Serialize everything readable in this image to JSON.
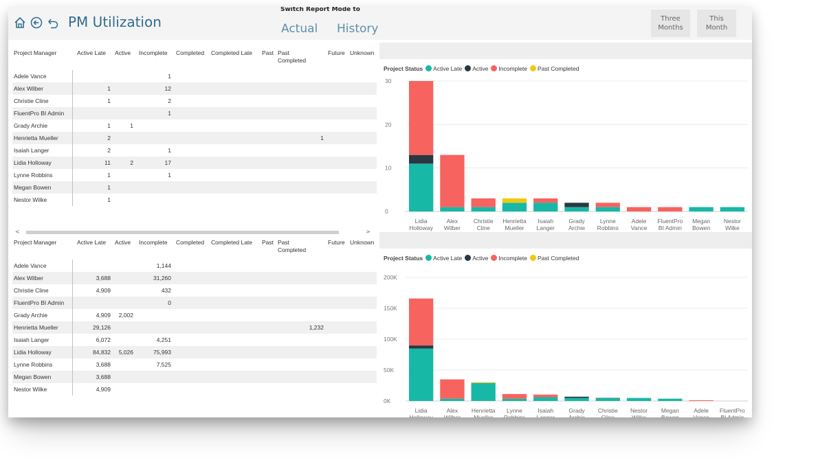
{
  "header": {
    "title": "PM Utilization",
    "mode_label": "Switch Report Mode to",
    "mode_actual": "Actual",
    "mode_history": "History",
    "three_months_1": "Three",
    "three_months_2": "Months",
    "this_month_1": "This",
    "this_month_2": "Month",
    "icons": [
      "home-icon",
      "back-circle-icon",
      "undo-icon"
    ]
  },
  "colors": {
    "active_late": "#17b8a6",
    "active": "#2b3740",
    "incomplete": "#f7635f",
    "past_completed": "#f2c80f",
    "title": "#2f6d8f"
  },
  "table_columns": [
    "Project Manager",
    "Active Late",
    "Active",
    "Incomplete",
    "Completed",
    "Completed Late",
    "Past",
    "Past Completed",
    "Future",
    "Unknown"
  ],
  "table1": {
    "rows": [
      {
        "pm": "Adele Vance",
        "active_late": "",
        "active": "",
        "incomplete": "1",
        "past_completed": ""
      },
      {
        "pm": "Alex Wilber",
        "active_late": "1",
        "active": "",
        "incomplete": "12",
        "past_completed": ""
      },
      {
        "pm": "Christie Cline",
        "active_late": "1",
        "active": "",
        "incomplete": "2",
        "past_completed": ""
      },
      {
        "pm": "FluentPro BI Admin",
        "active_late": "",
        "active": "",
        "incomplete": "1",
        "past_completed": ""
      },
      {
        "pm": "Grady Archie",
        "active_late": "1",
        "active": "1",
        "incomplete": "",
        "past_completed": ""
      },
      {
        "pm": "Henrietta Mueller",
        "active_late": "2",
        "active": "",
        "incomplete": "",
        "past_completed": "1"
      },
      {
        "pm": "Isaiah Langer",
        "active_late": "2",
        "active": "",
        "incomplete": "1",
        "past_completed": ""
      },
      {
        "pm": "Lidia Holloway",
        "active_late": "11",
        "active": "2",
        "incomplete": "17",
        "past_completed": ""
      },
      {
        "pm": "Lynne Robbins",
        "active_late": "1",
        "active": "",
        "incomplete": "1",
        "past_completed": ""
      },
      {
        "pm": "Megan Bowen",
        "active_late": "1",
        "active": "",
        "incomplete": "",
        "past_completed": ""
      },
      {
        "pm": "Nestor Wilke",
        "active_late": "1",
        "active": "",
        "incomplete": "",
        "past_completed": ""
      }
    ]
  },
  "table2": {
    "rows": [
      {
        "pm": "Adele Vance",
        "active_late": "",
        "active": "",
        "incomplete": "1,144",
        "past_completed": ""
      },
      {
        "pm": "Alex Wilber",
        "active_late": "3,688",
        "active": "",
        "incomplete": "31,260",
        "past_completed": ""
      },
      {
        "pm": "Christie Cline",
        "active_late": "4,909",
        "active": "",
        "incomplete": "432",
        "past_completed": ""
      },
      {
        "pm": "FluentPro BI Admin",
        "active_late": "",
        "active": "",
        "incomplete": "0",
        "past_completed": ""
      },
      {
        "pm": "Grady Archie",
        "active_late": "4,909",
        "active": "2,002",
        "incomplete": "",
        "past_completed": ""
      },
      {
        "pm": "Henrietta Mueller",
        "active_late": "29,126",
        "active": "",
        "incomplete": "",
        "past_completed": "1,232"
      },
      {
        "pm": "Isaiah Langer",
        "active_late": "6,072",
        "active": "",
        "incomplete": "4,251",
        "past_completed": ""
      },
      {
        "pm": "Lidia Holloway",
        "active_late": "84,832",
        "active": "5,026",
        "incomplete": "75,993",
        "past_completed": ""
      },
      {
        "pm": "Lynne Robbins",
        "active_late": "3,688",
        "active": "",
        "incomplete": "7,525",
        "past_completed": ""
      },
      {
        "pm": "Megan Bowen",
        "active_late": "3,688",
        "active": "",
        "incomplete": "",
        "past_completed": ""
      },
      {
        "pm": "Nestor Wilke",
        "active_late": "4,909",
        "active": "",
        "incomplete": "",
        "past_completed": ""
      }
    ]
  },
  "scroll": {
    "left": "<",
    "right": ">"
  },
  "chart_data": [
    {
      "type": "bar",
      "stacked": true,
      "legend_title": "Project Status",
      "legend_position": "top-left",
      "grid": true,
      "ylim": [
        0,
        30
      ],
      "yticks": [
        "0",
        "10",
        "20",
        "30"
      ],
      "ytick_values": [
        0,
        10,
        20,
        30
      ],
      "categories": [
        [
          "Lidia",
          "Holloway"
        ],
        [
          "Alex",
          "Wilber"
        ],
        [
          "Christie",
          "Cline"
        ],
        [
          "Henrietta",
          "Mueller"
        ],
        [
          "Isaiah",
          "Langer"
        ],
        [
          "Grady",
          "Archie"
        ],
        [
          "Lynne",
          "Robbins"
        ],
        [
          "Adele",
          "Vance"
        ],
        [
          "FluentPro",
          "BI Admin"
        ],
        [
          "Megan",
          "Bowen"
        ],
        [
          "Nestor",
          "Wilke"
        ]
      ],
      "series": [
        {
          "name": "Active Late",
          "color": "#17b8a6",
          "values": [
            11,
            1,
            1,
            2,
            2,
            1,
            1,
            0,
            0,
            1,
            1
          ]
        },
        {
          "name": "Active",
          "color": "#2b3740",
          "values": [
            2,
            0,
            0,
            0,
            0,
            1,
            0,
            0,
            0,
            0,
            0
          ]
        },
        {
          "name": "Incomplete",
          "color": "#f7635f",
          "values": [
            17,
            12,
            2,
            0,
            1,
            0,
            1,
            1,
            1,
            0,
            0
          ]
        },
        {
          "name": "Past Completed",
          "color": "#f2c80f",
          "values": [
            0,
            0,
            0,
            1,
            0,
            0,
            0,
            0,
            0,
            0,
            0
          ]
        }
      ]
    },
    {
      "type": "bar",
      "stacked": true,
      "legend_title": "Project Status",
      "legend_position": "top-left",
      "grid": true,
      "ylim": [
        0,
        200000
      ],
      "yticks": [
        "0K",
        "50K",
        "100K",
        "150K",
        "200K"
      ],
      "ytick_values": [
        0,
        50000,
        100000,
        150000,
        200000
      ],
      "categories": [
        [
          "Lidia",
          "Holloway"
        ],
        [
          "Alex",
          "Wilber"
        ],
        [
          "Henrietta",
          "Mueller"
        ],
        [
          "Lynne",
          "Robbins"
        ],
        [
          "Isaiah",
          "Langer"
        ],
        [
          "Grady",
          "Archie"
        ],
        [
          "Christie",
          "Cline"
        ],
        [
          "Nestor",
          "Wilke"
        ],
        [
          "Megan",
          "Bowen"
        ],
        [
          "Adele",
          "Vance"
        ],
        [
          "FluentPro",
          "BI Admin"
        ]
      ],
      "series": [
        {
          "name": "Active Late",
          "color": "#17b8a6",
          "values": [
            84832,
            3688,
            29126,
            3688,
            6072,
            4909,
            4909,
            4909,
            3688,
            0,
            0
          ]
        },
        {
          "name": "Active",
          "color": "#2b3740",
          "values": [
            5026,
            0,
            0,
            0,
            0,
            2002,
            0,
            0,
            0,
            0,
            0
          ]
        },
        {
          "name": "Incomplete",
          "color": "#f7635f",
          "values": [
            75993,
            31260,
            0,
            7525,
            4251,
            0,
            432,
            0,
            0,
            1144,
            0
          ]
        },
        {
          "name": "Past Completed",
          "color": "#f2c80f",
          "values": [
            0,
            0,
            1232,
            0,
            0,
            0,
            0,
            0,
            0,
            0,
            0
          ]
        }
      ]
    }
  ]
}
